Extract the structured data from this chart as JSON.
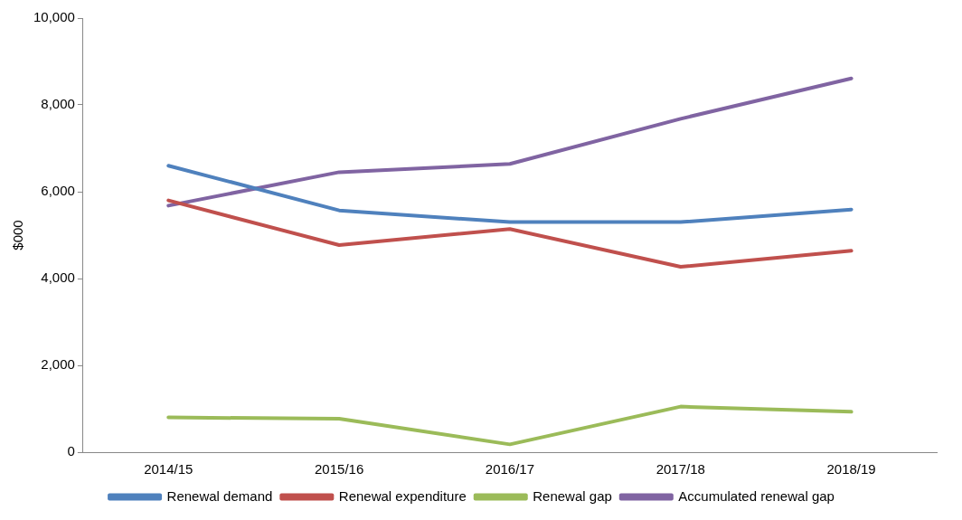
{
  "chart_data": {
    "type": "line",
    "ylabel": "$000",
    "categories": [
      "2014/15",
      "2015/16",
      "2016/17",
      "2017/18",
      "2018/19"
    ],
    "series": [
      {
        "name": "Renewal demand",
        "color": "#4f81bd",
        "values": [
          6600,
          5570,
          5300,
          5300,
          5590
        ]
      },
      {
        "name": "Renewal expenditure",
        "color": "#c0504d",
        "values": [
          5800,
          4770,
          5140,
          4270,
          4640
        ]
      },
      {
        "name": "Renewal gap",
        "color": "#9bbb59",
        "values": [
          800,
          770,
          180,
          1050,
          930
        ]
      },
      {
        "name": "Accumulated renewal gap",
        "color": "#8064a2",
        "values": [
          5680,
          6450,
          6640,
          7680,
          8610
        ]
      }
    ],
    "ylim": [
      0,
      10000
    ],
    "yticks": [
      {
        "value": 0,
        "label": "0"
      },
      {
        "value": 2000,
        "label": "2,000"
      },
      {
        "value": 4000,
        "label": "4,000"
      },
      {
        "value": 6000,
        "label": "6,000"
      },
      {
        "value": 8000,
        "label": "8,000"
      },
      {
        "value": 10000,
        "label": "10,000"
      }
    ],
    "grid": false,
    "legend": "bottom",
    "marker": "none",
    "line_style": "solid"
  }
}
